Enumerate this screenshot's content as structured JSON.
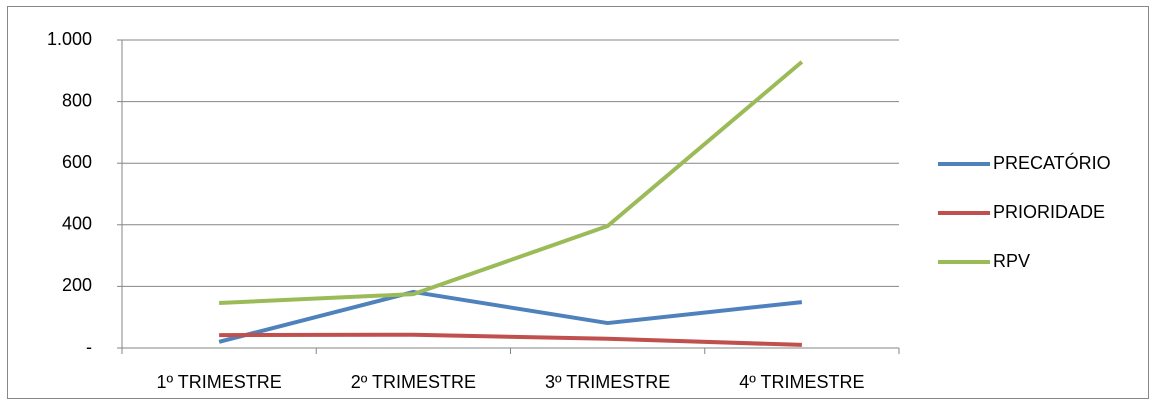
{
  "chart_data": {
    "type": "line",
    "categories": [
      "1º TRIMESTRE",
      "2º TRIMESTRE",
      "3º TRIMESTRE",
      "4º TRIMESTRE"
    ],
    "series": [
      {
        "name": "PRECATÓRIO",
        "color": "#4f81bd",
        "values": [
          20,
          182,
          81,
          149
        ]
      },
      {
        "name": "PRIORIDADE",
        "color": "#c0504d",
        "values": [
          42,
          43,
          30,
          10
        ]
      },
      {
        "name": "RPV",
        "color": "#9bbb59",
        "values": [
          146,
          175,
          396,
          929
        ]
      }
    ],
    "ylim": [
      0,
      1000
    ],
    "yticks": [
      {
        "value": 0,
        "label": "-"
      },
      200,
      400,
      600,
      800,
      {
        "value": 1000,
        "label": "1.000"
      }
    ],
    "grid": true,
    "legend": "right"
  }
}
